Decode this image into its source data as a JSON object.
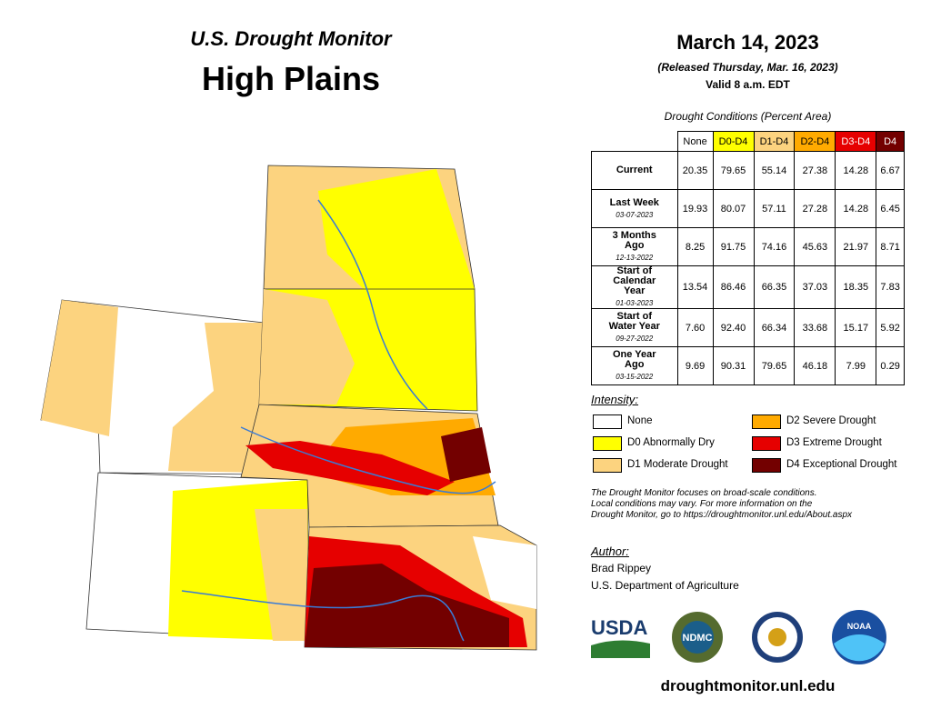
{
  "header": {
    "title": "U.S. Drought Monitor",
    "region": "High Plains"
  },
  "date": {
    "main": "March 14, 2023",
    "released": "(Released Thursday, Mar. 16, 2023)",
    "valid": "Valid 8 a.m. EDT"
  },
  "table": {
    "caption": "Drought Conditions (Percent Area)",
    "columns": [
      {
        "label": "None",
        "color": "#ffffff",
        "text": "#000000"
      },
      {
        "label": "D0-D4",
        "color": "#ffff00",
        "text": "#000000"
      },
      {
        "label": "D1-D4",
        "color": "#fcd37f",
        "text": "#000000"
      },
      {
        "label": "D2-D4",
        "color": "#ffaa00",
        "text": "#000000"
      },
      {
        "label": "D3-D4",
        "color": "#e60000",
        "text": "#ffffff"
      },
      {
        "label": "D4",
        "color": "#730000",
        "text": "#ffffff"
      }
    ],
    "rows": [
      {
        "label": "Current",
        "values": [
          "20.35",
          "79.65",
          "55.14",
          "27.38",
          "14.28",
          "6.67"
        ]
      },
      {
        "label": "Last Week",
        "date": "03-07-2023",
        "values": [
          "19.93",
          "80.07",
          "57.11",
          "27.28",
          "14.28",
          "6.45"
        ]
      },
      {
        "label": "3 Months Ago",
        "date": "12-13-2022",
        "values": [
          "8.25",
          "91.75",
          "74.16",
          "45.63",
          "21.97",
          "8.71"
        ]
      },
      {
        "label": "Start of Calendar Year",
        "date": "01-03-2023",
        "values": [
          "13.54",
          "86.46",
          "66.35",
          "37.03",
          "18.35",
          "7.83"
        ]
      },
      {
        "label": "Start of Water Year",
        "date": "09-27-2022",
        "values": [
          "7.60",
          "92.40",
          "66.34",
          "33.68",
          "15.17",
          "5.92"
        ]
      },
      {
        "label": "One Year Ago",
        "date": "03-15-2022",
        "values": [
          "9.69",
          "90.31",
          "79.65",
          "46.18",
          "7.99",
          "0.29"
        ]
      }
    ]
  },
  "legend": {
    "title": "Intensity:",
    "items": [
      {
        "label": "None",
        "color": "#ffffff"
      },
      {
        "label": "D0 Abnormally Dry",
        "color": "#ffff00"
      },
      {
        "label": "D1 Moderate Drought",
        "color": "#fcd37f"
      },
      {
        "label": "D2 Severe Drought",
        "color": "#ffaa00"
      },
      {
        "label": "D3 Extreme Drought",
        "color": "#e60000"
      },
      {
        "label": "D4 Exceptional Drought",
        "color": "#730000"
      }
    ]
  },
  "note": [
    "The Drought Monitor focuses on broad-scale conditions.",
    "Local conditions may vary. For more information on the",
    "Drought Monitor, go to https://droughtmonitor.unl.edu/About.aspx"
  ],
  "author": {
    "heading": "Author:",
    "name": "Brad Rippey",
    "org": "U.S. Department of Agriculture"
  },
  "logos": {
    "usda": "USDA",
    "ndmc": "NDMC",
    "noaa": "NOAA"
  },
  "url": "droughtmonitor.unl.edu"
}
